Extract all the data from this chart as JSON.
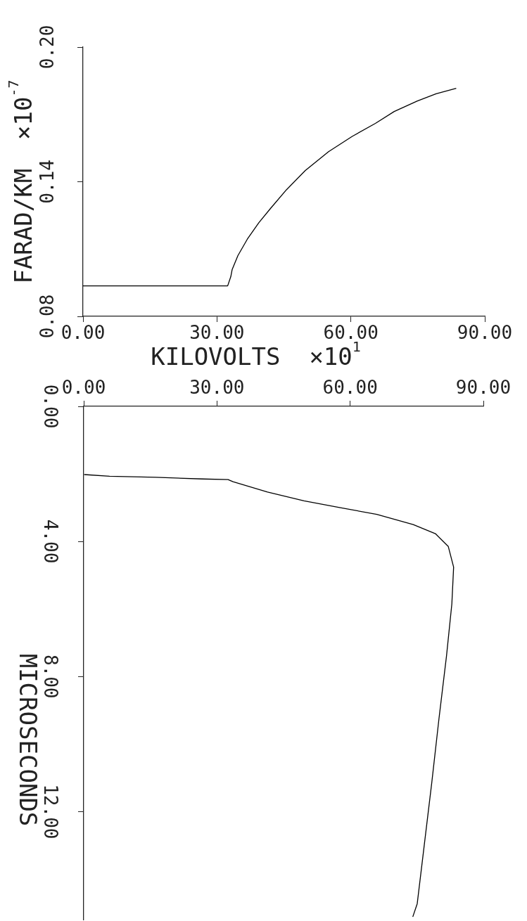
{
  "chart_data": [
    {
      "type": "line",
      "xlabel": "KILOVOLTS  ×10$^{1}$",
      "ylabel": "FARAD/KM  ×10$^{-7}$",
      "xlim": [
        0,
        90
      ],
      "xticks": [
        {
          "value": 0,
          "label": "0.00"
        },
        {
          "value": 30,
          "label": "30.00"
        },
        {
          "value": 60,
          "label": "60.00"
        },
        {
          "value": 90,
          "label": "90.00"
        }
      ],
      "ylim": [
        0.08,
        0.2
      ],
      "yticks": [
        {
          "value": 0.08,
          "label": "0.08"
        },
        {
          "value": 0.14,
          "label": "0.14"
        },
        {
          "value": 0.2,
          "label": "0.20"
        }
      ],
      "grid": false,
      "legend": false,
      "marker": "none",
      "series": [
        {
          "color": "#000000",
          "x": [
            0,
            32.4,
            33.1,
            33.4,
            34.7,
            36.8,
            39.4,
            42.0,
            45.6,
            49.8,
            55.0,
            60.3,
            65.5,
            69.7,
            74.9,
            79.1,
            83.6
          ],
          "values": [
            0.0936,
            0.0936,
            0.0977,
            0.1008,
            0.1071,
            0.1144,
            0.1218,
            0.1281,
            0.1365,
            0.145,
            0.1534,
            0.1602,
            0.166,
            0.1713,
            0.176,
            0.1792,
            0.1816
          ]
        }
      ]
    },
    {
      "type": "line",
      "ylabel": "MICROSECONDS",
      "xlim": [
        0,
        90
      ],
      "xticks": [
        {
          "value": 0,
          "label": "0.00"
        },
        {
          "value": 30,
          "label": "30.00"
        },
        {
          "value": 60,
          "label": "60.00"
        },
        {
          "value": 90,
          "label": "90.00"
        }
      ],
      "ylim": [
        15.2,
        0
      ],
      "yticks": [
        {
          "value": 0,
          "label": "0.00"
        },
        {
          "value": 4,
          "label": "4.00"
        },
        {
          "value": 8,
          "label": "8.00"
        },
        {
          "value": 12,
          "label": "12.00"
        }
      ],
      "grid": false,
      "legend": false,
      "marker": "none",
      "series": [
        {
          "color": "#000000",
          "x": [
            0.1,
            5.8,
            16.2,
            26.7,
            32.5,
            33.6,
            41.4,
            49.6,
            57.8,
            66.0,
            74.2,
            79.2,
            82.1,
            83.3,
            82.9,
            81.7,
            80.0,
            78.4,
            76.7,
            75.1,
            74.1
          ],
          "values": [
            2.02,
            2.07,
            2.1,
            2.15,
            2.17,
            2.23,
            2.54,
            2.8,
            3.0,
            3.2,
            3.5,
            3.77,
            4.15,
            4.76,
            5.85,
            7.39,
            9.25,
            11.12,
            12.98,
            14.73,
            15.12
          ]
        }
      ]
    }
  ]
}
